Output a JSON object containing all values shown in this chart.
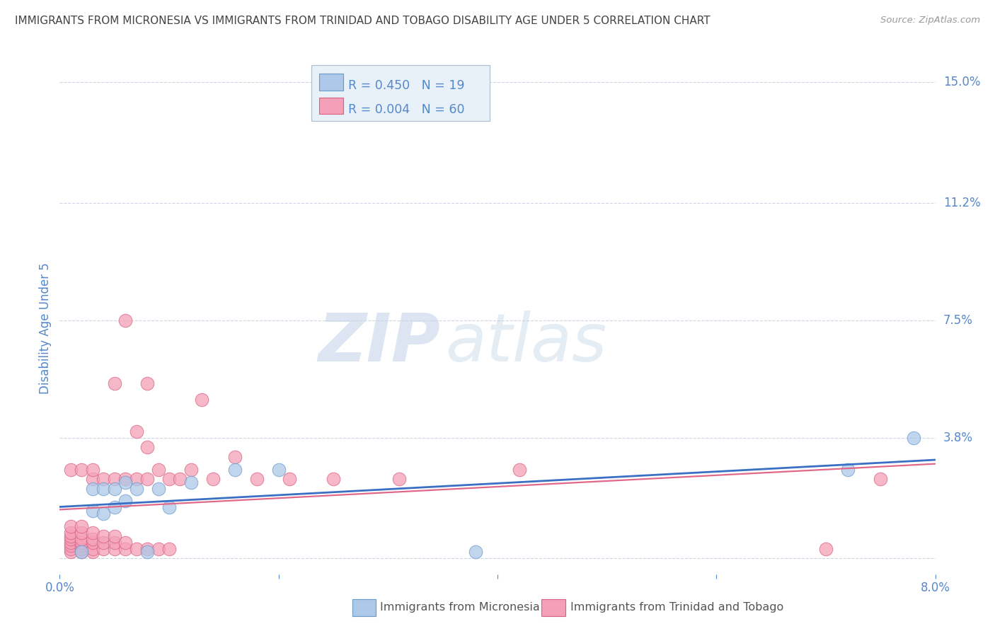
{
  "title": "IMMIGRANTS FROM MICRONESIA VS IMMIGRANTS FROM TRINIDAD AND TOBAGO DISABILITY AGE UNDER 5 CORRELATION CHART",
  "source": "Source: ZipAtlas.com",
  "ylabel": "Disability Age Under 5",
  "xlim": [
    0.0,
    0.08
  ],
  "ylim": [
    -0.005,
    0.15
  ],
  "xticks": [
    0.0,
    0.02,
    0.04,
    0.06,
    0.08
  ],
  "xtick_labels": [
    "0.0%",
    "",
    "",
    "",
    "8.0%"
  ],
  "yticks": [
    0.0,
    0.038,
    0.075,
    0.112,
    0.15
  ],
  "ytick_labels_right": [
    "",
    "3.8%",
    "7.5%",
    "11.2%",
    "15.0%"
  ],
  "blue_R": 0.45,
  "blue_N": 19,
  "pink_R": 0.004,
  "pink_N": 60,
  "blue_label": "Immigrants from Micronesia",
  "pink_label": "Immigrants from Trinidad and Tobago",
  "blue_color": "#adc8e8",
  "blue_edge": "#6699cc",
  "pink_color": "#f4a0b8",
  "pink_edge": "#d96080",
  "blue_line_color": "#3a6fc4",
  "pink_line_color": "#e06888",
  "blue_scatter_x": [
    0.002,
    0.003,
    0.003,
    0.004,
    0.004,
    0.005,
    0.005,
    0.006,
    0.006,
    0.007,
    0.008,
    0.009,
    0.01,
    0.012,
    0.016,
    0.02,
    0.038,
    0.072,
    0.078
  ],
  "blue_scatter_y": [
    0.002,
    0.015,
    0.022,
    0.014,
    0.022,
    0.016,
    0.022,
    0.018,
    0.024,
    0.022,
    0.002,
    0.022,
    0.016,
    0.024,
    0.028,
    0.028,
    0.002,
    0.028,
    0.038
  ],
  "pink_scatter_x": [
    0.001,
    0.001,
    0.001,
    0.001,
    0.001,
    0.001,
    0.001,
    0.001,
    0.001,
    0.002,
    0.002,
    0.002,
    0.002,
    0.002,
    0.002,
    0.002,
    0.002,
    0.003,
    0.003,
    0.003,
    0.003,
    0.003,
    0.003,
    0.003,
    0.004,
    0.004,
    0.004,
    0.004,
    0.005,
    0.005,
    0.005,
    0.005,
    0.005,
    0.006,
    0.006,
    0.006,
    0.006,
    0.007,
    0.007,
    0.007,
    0.008,
    0.008,
    0.008,
    0.008,
    0.009,
    0.009,
    0.01,
    0.01,
    0.011,
    0.012,
    0.013,
    0.014,
    0.016,
    0.018,
    0.021,
    0.025,
    0.031,
    0.042,
    0.07,
    0.075
  ],
  "pink_scatter_y": [
    0.002,
    0.003,
    0.004,
    0.005,
    0.006,
    0.007,
    0.008,
    0.01,
    0.028,
    0.002,
    0.003,
    0.004,
    0.005,
    0.006,
    0.008,
    0.01,
    0.028,
    0.002,
    0.003,
    0.005,
    0.006,
    0.008,
    0.025,
    0.028,
    0.003,
    0.005,
    0.007,
    0.025,
    0.003,
    0.005,
    0.007,
    0.025,
    0.055,
    0.003,
    0.005,
    0.025,
    0.075,
    0.003,
    0.025,
    0.04,
    0.003,
    0.025,
    0.035,
    0.055,
    0.003,
    0.028,
    0.003,
    0.025,
    0.025,
    0.028,
    0.05,
    0.025,
    0.032,
    0.025,
    0.025,
    0.025,
    0.025,
    0.028,
    0.003,
    0.025
  ],
  "watermark_zip": "ZIP",
  "watermark_atlas": "atlas",
  "background_color": "#ffffff",
  "grid_color": "#ccd5e5",
  "title_color": "#444444",
  "axis_label_color": "#5588cc",
  "legend_box_color": "#e8f0f8",
  "legend_box_edge": "#aabbcc"
}
